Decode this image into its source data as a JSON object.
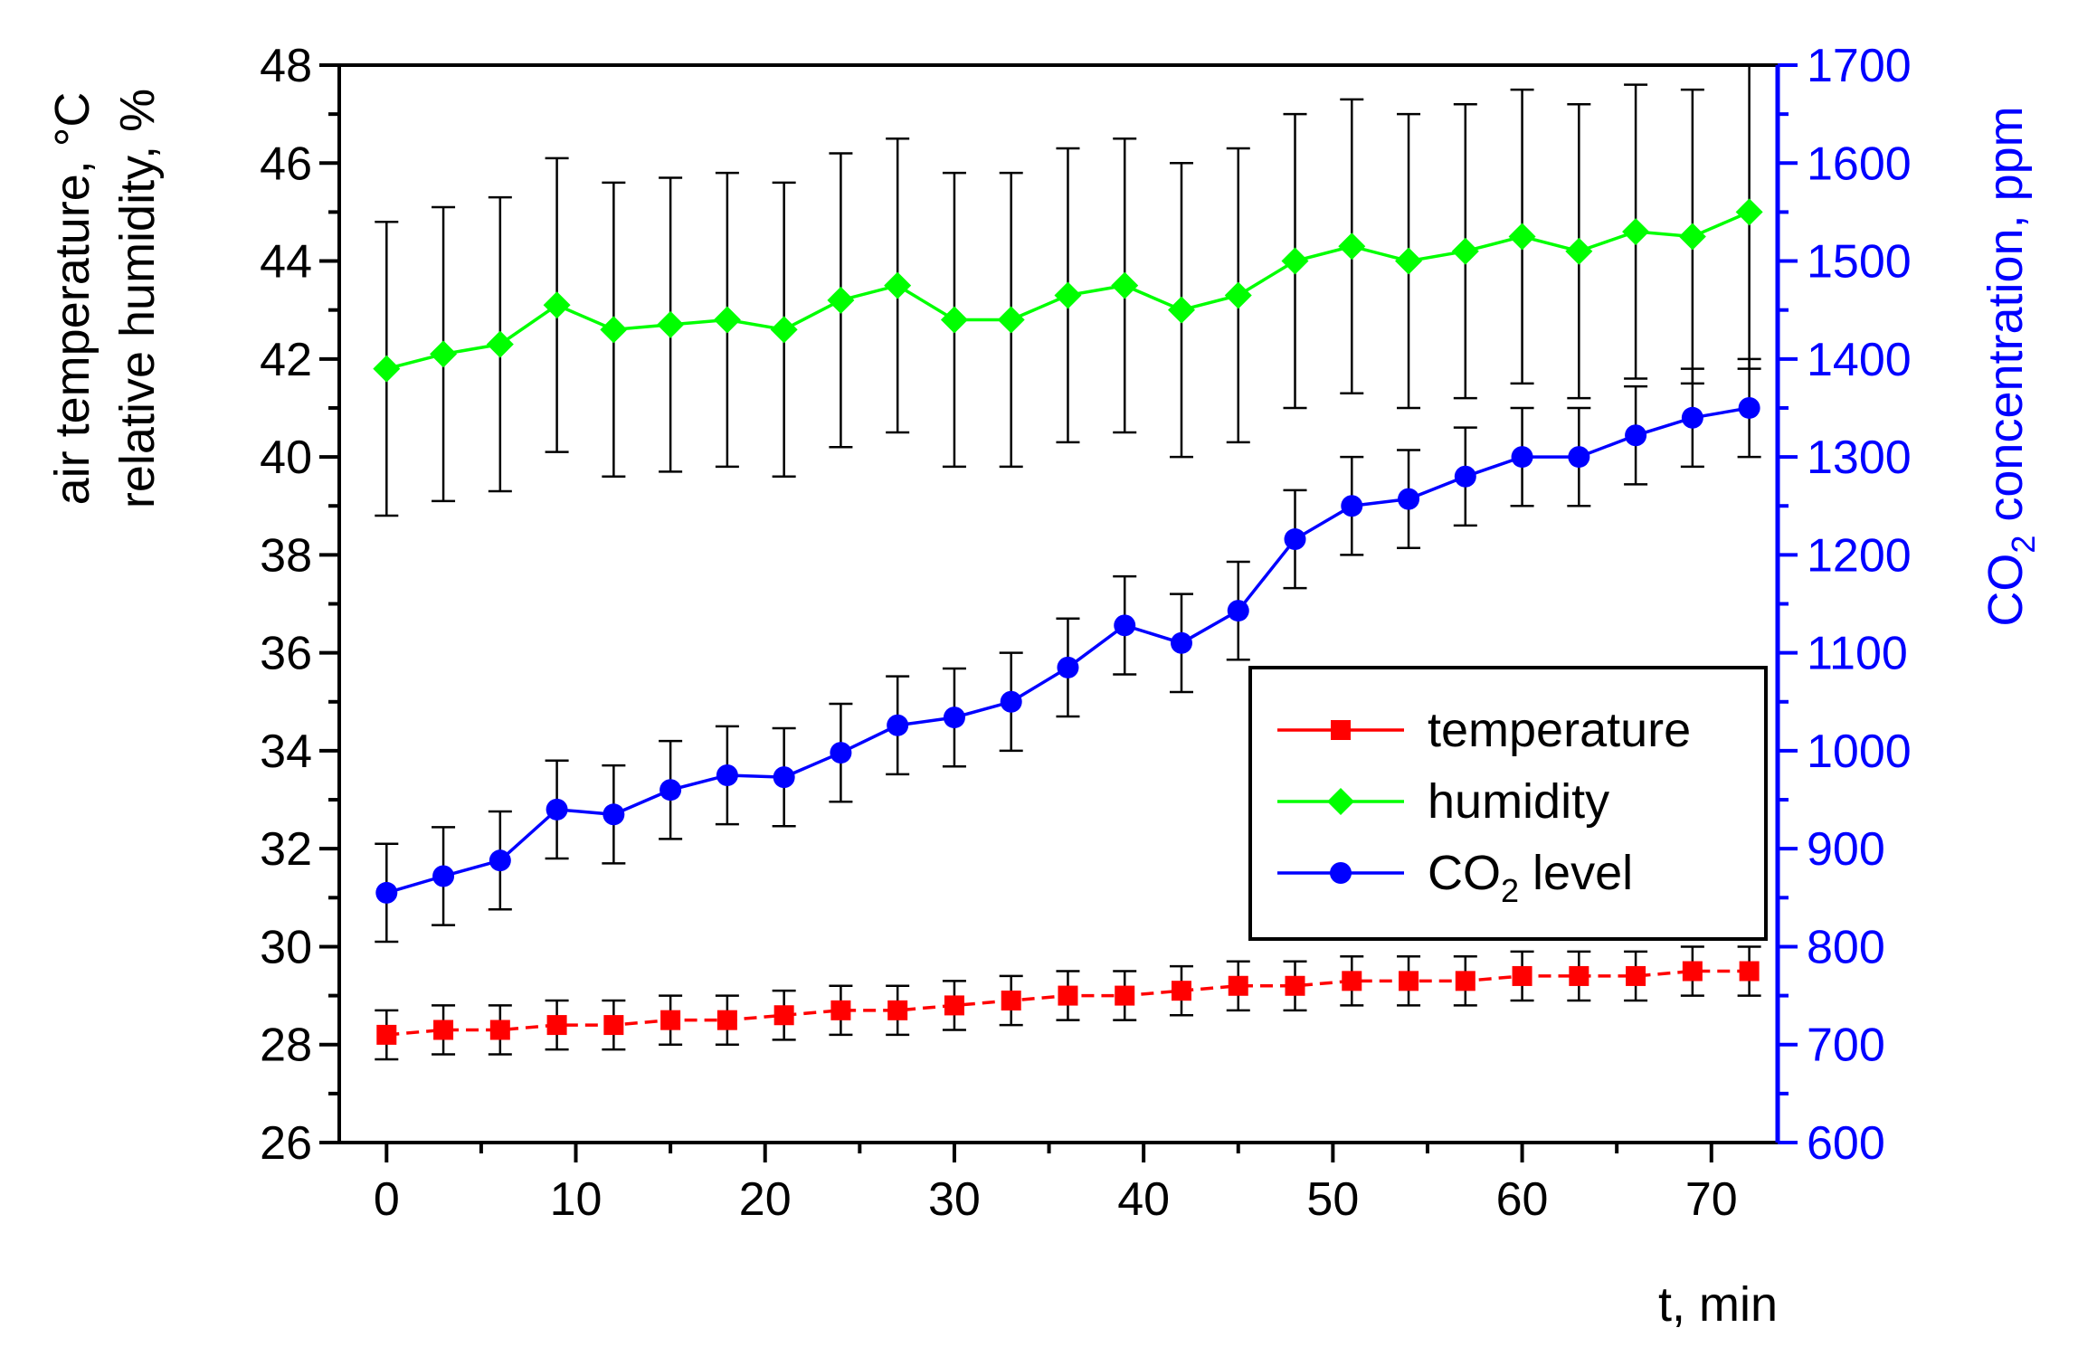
{
  "chart_data": {
    "type": "line",
    "x": [
      0,
      3,
      6,
      9,
      12,
      15,
      18,
      21,
      24,
      27,
      30,
      33,
      36,
      39,
      42,
      45,
      48,
      51,
      54,
      57,
      60,
      63,
      66,
      69,
      72
    ],
    "xlim": [
      -2.5,
      73.5
    ],
    "ylim_left": [
      26,
      48
    ],
    "ylim_right": [
      600,
      1700
    ],
    "x_ticks": [
      0,
      10,
      20,
      30,
      40,
      50,
      60,
      70
    ],
    "y_left_ticks": [
      26,
      28,
      30,
      32,
      34,
      36,
      38,
      40,
      42,
      44,
      46,
      48
    ],
    "y_right_ticks": [
      600,
      700,
      800,
      900,
      1000,
      1100,
      1200,
      1300,
      1400,
      1500,
      1600,
      1700
    ],
    "xlabel": "t, min",
    "ylabel_left_line1": "air temperature, °C",
    "ylabel_left_line2": "relative humidity, %",
    "ylabel_right_main": "CO",
    "ylabel_right_sub": "2",
    "ylabel_right_rest": " concentration, ppm",
    "series": [
      {
        "name": "temperature",
        "legend_label": "temperature",
        "axis": "left",
        "marker": "square",
        "color": "#ff0000",
        "values": [
          28.2,
          28.3,
          28.3,
          28.4,
          28.4,
          28.5,
          28.5,
          28.6,
          28.7,
          28.7,
          28.8,
          28.9,
          29.0,
          29.0,
          29.1,
          29.2,
          29.2,
          29.3,
          29.3,
          29.3,
          29.4,
          29.4,
          29.4,
          29.5,
          29.5
        ],
        "errors": [
          0.5,
          0.5,
          0.5,
          0.5,
          0.5,
          0.5,
          0.5,
          0.5,
          0.5,
          0.5,
          0.5,
          0.5,
          0.5,
          0.5,
          0.5,
          0.5,
          0.5,
          0.5,
          0.5,
          0.5,
          0.5,
          0.5,
          0.5,
          0.5,
          0.5
        ]
      },
      {
        "name": "humidity",
        "legend_label": "humidity",
        "axis": "left",
        "marker": "diamond",
        "color": "#00ff00",
        "values": [
          41.8,
          42.1,
          42.3,
          43.1,
          42.6,
          42.7,
          42.8,
          42.6,
          43.2,
          43.5,
          42.8,
          42.8,
          43.3,
          43.5,
          43.0,
          43.3,
          44.0,
          44.3,
          44.0,
          44.2,
          44.5,
          44.2,
          44.6,
          44.5,
          45.0
        ],
        "errors": [
          3.0,
          3.0,
          3.0,
          3.0,
          3.0,
          3.0,
          3.0,
          3.0,
          3.0,
          3.0,
          3.0,
          3.0,
          3.0,
          3.0,
          3.0,
          3.0,
          3.0,
          3.0,
          3.0,
          3.0,
          3.0,
          3.0,
          3.0,
          3.0,
          3.2
        ]
      },
      {
        "name": "CO2 level",
        "legend_main": "CO",
        "legend_sub": "2",
        "legend_rest": " level",
        "axis": "right",
        "marker": "circle",
        "color": "#0000ff",
        "values": [
          855,
          872,
          888,
          940,
          935,
          960,
          975,
          973,
          998,
          1026,
          1034,
          1050,
          1085,
          1128,
          1110,
          1143,
          1216,
          1250,
          1257,
          1280,
          1300,
          1300,
          1322,
          1340,
          1350
        ],
        "errors": [
          50,
          50,
          50,
          50,
          50,
          50,
          50,
          50,
          50,
          50,
          50,
          50,
          50,
          50,
          50,
          50,
          50,
          50,
          50,
          50,
          50,
          50,
          50,
          50,
          50
        ]
      }
    ]
  }
}
